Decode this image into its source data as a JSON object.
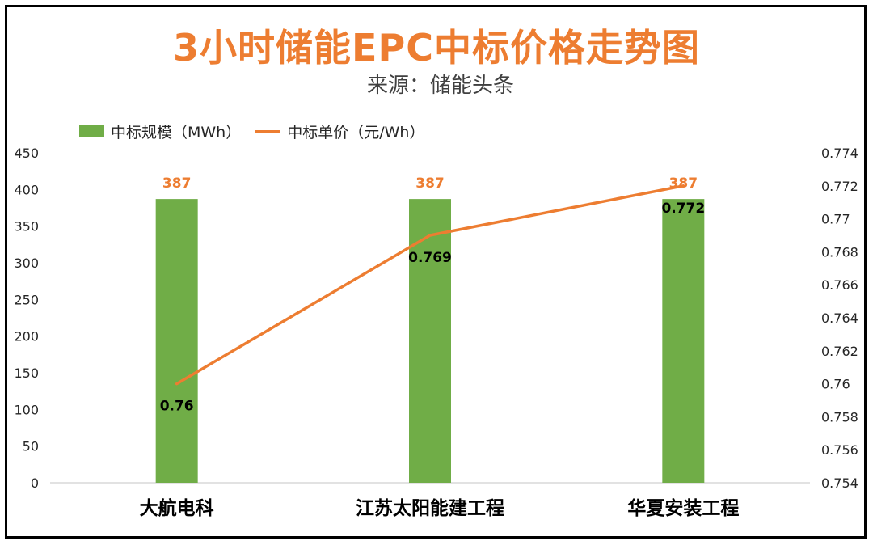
{
  "chart_data": {
    "type": "bar",
    "title": "3小时储能EPC中标价格走势图",
    "subtitle": "来源：储能头条",
    "categories": [
      "大航电科",
      "江苏太阳能建工程",
      "华夏安装工程"
    ],
    "series": [
      {
        "name": "中标规模（MWh）",
        "type": "bar",
        "axis": "left",
        "color": "#70AD47",
        "values": [
          387,
          387,
          387
        ],
        "labels": [
          "387",
          "387",
          "387"
        ]
      },
      {
        "name": "中标单价（元/Wh）",
        "type": "line",
        "axis": "right",
        "color": "#ED7D31",
        "values": [
          0.76,
          0.769,
          0.772
        ],
        "labels": [
          "0.76",
          "0.769",
          "0.772"
        ]
      }
    ],
    "y_left": {
      "ylim": [
        0,
        450
      ],
      "ticks": [
        "0",
        "50",
        "100",
        "150",
        "200",
        "250",
        "300",
        "350",
        "400",
        "450"
      ]
    },
    "y_right": {
      "ylim": [
        0.754,
        0.774
      ],
      "ticks": [
        "0.754",
        "0.756",
        "0.758",
        "0.76",
        "0.762",
        "0.764",
        "0.766",
        "0.768",
        "0.77",
        "0.772",
        "0.774"
      ]
    },
    "grid": false,
    "legend_position": "top-left"
  }
}
